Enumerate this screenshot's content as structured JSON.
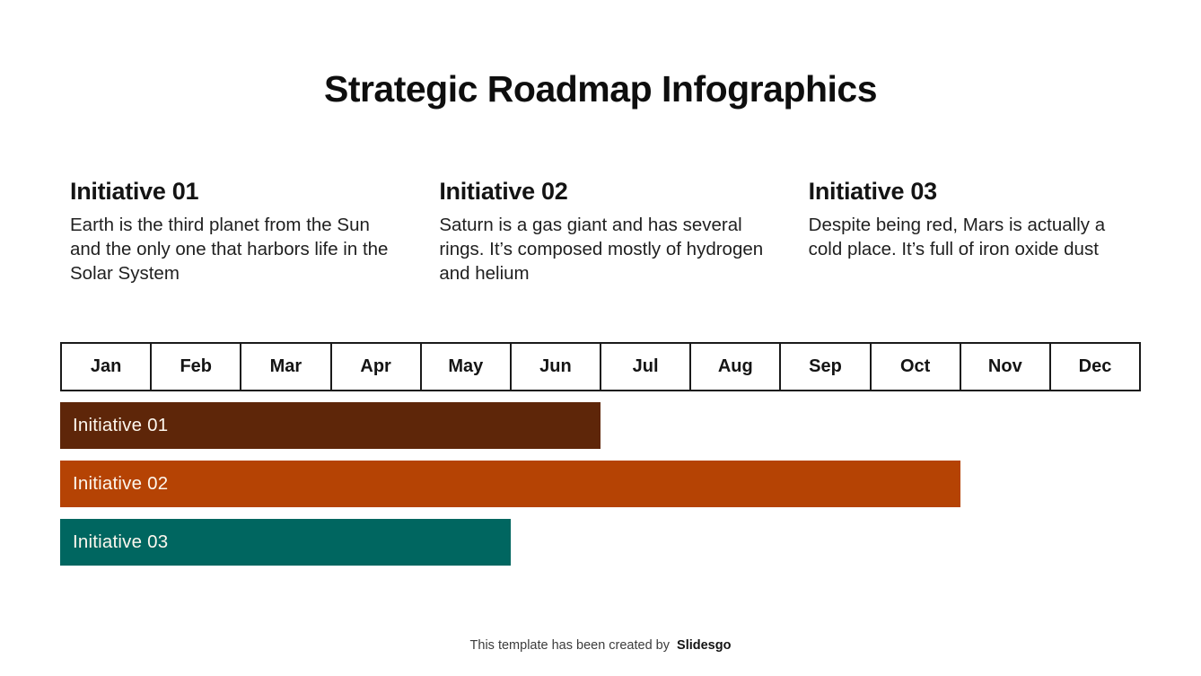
{
  "slide": {
    "title": "Strategic Roadmap Infographics",
    "initiatives": [
      {
        "heading": "Initiative 01",
        "description": "Earth is the third planet from the Sun and the only one that harbors life in the Solar System"
      },
      {
        "heading": "Initiative 02",
        "description": "Saturn is a gas giant and has several rings. It’s composed mostly of hydrogen and helium"
      },
      {
        "heading": "Initiative 03",
        "description": "Despite being red, Mars is actually a cold place. It’s full of iron oxide dust"
      }
    ],
    "footer": {
      "text": "This template has been created by",
      "brand": "Slidesgo"
    }
  },
  "chart_data": {
    "type": "bar",
    "subtype": "gantt-roadmap",
    "months": [
      "Jan",
      "Feb",
      "Mar",
      "Apr",
      "May",
      "Jun",
      "Jul",
      "Aug",
      "Sep",
      "Oct",
      "Nov",
      "Dec"
    ],
    "bars": [
      {
        "label": "Initiative 01",
        "start_month": "Jan",
        "end_month": "Jun",
        "span_months": 6,
        "color": "#5E2609"
      },
      {
        "label": "Initiative 02",
        "start_month": "Jan",
        "end_month": "Oct",
        "span_months": 10,
        "color": "#B54304"
      },
      {
        "label": "Initiative 03",
        "start_month": "Jan",
        "end_month": "May",
        "span_months": 5,
        "color": "#006660"
      }
    ],
    "axis_range_months": 12,
    "grid": "month-cells",
    "legend": "none"
  }
}
